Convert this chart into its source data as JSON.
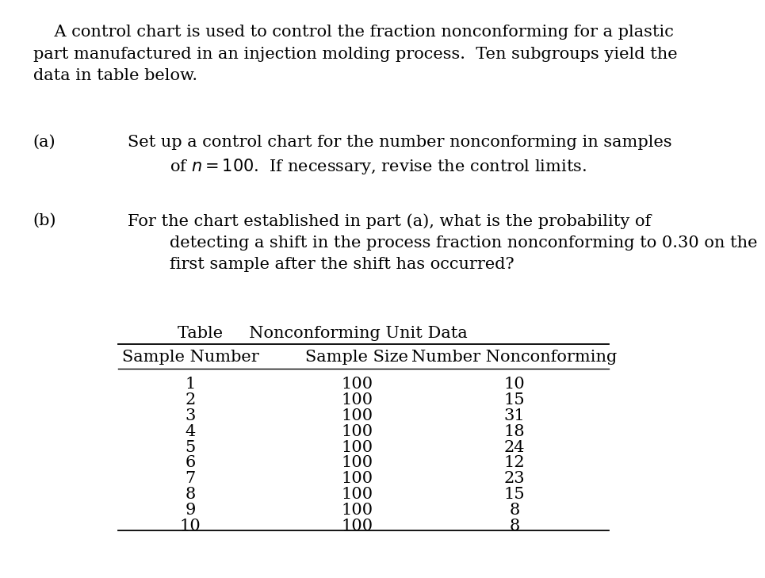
{
  "background_color": "#ffffff",
  "intro_text": "    A control chart is used to control the fraction nonconforming for a plastic\npart manufactured in an injection molding process.  Ten subgroups yield the\ndata in table below.",
  "part_a_label": "(a)",
  "part_a_text": "Set up a control chart for the number nonconforming in samples\n        of $n = 100$.  If necessary, revise the control limits.",
  "part_b_label": "(b)",
  "part_b_text": "For the chart established in part (a), what is the probability of\n        detecting a shift in the process fraction nonconforming to 0.30 on the\n        first sample after the shift has occurred?",
  "table_title": "Table     Nonconforming Unit Data",
  "col_headers": [
    "Sample Number",
    "Sample Size",
    "Number Nonconforming"
  ],
  "sample_numbers": [
    1,
    2,
    3,
    4,
    5,
    6,
    7,
    8,
    9,
    10
  ],
  "sample_sizes": [
    100,
    100,
    100,
    100,
    100,
    100,
    100,
    100,
    100,
    100
  ],
  "nonconforming": [
    10,
    15,
    31,
    18,
    24,
    12,
    23,
    15,
    8,
    8
  ],
  "font_size": 15.0,
  "font_family": "serif"
}
